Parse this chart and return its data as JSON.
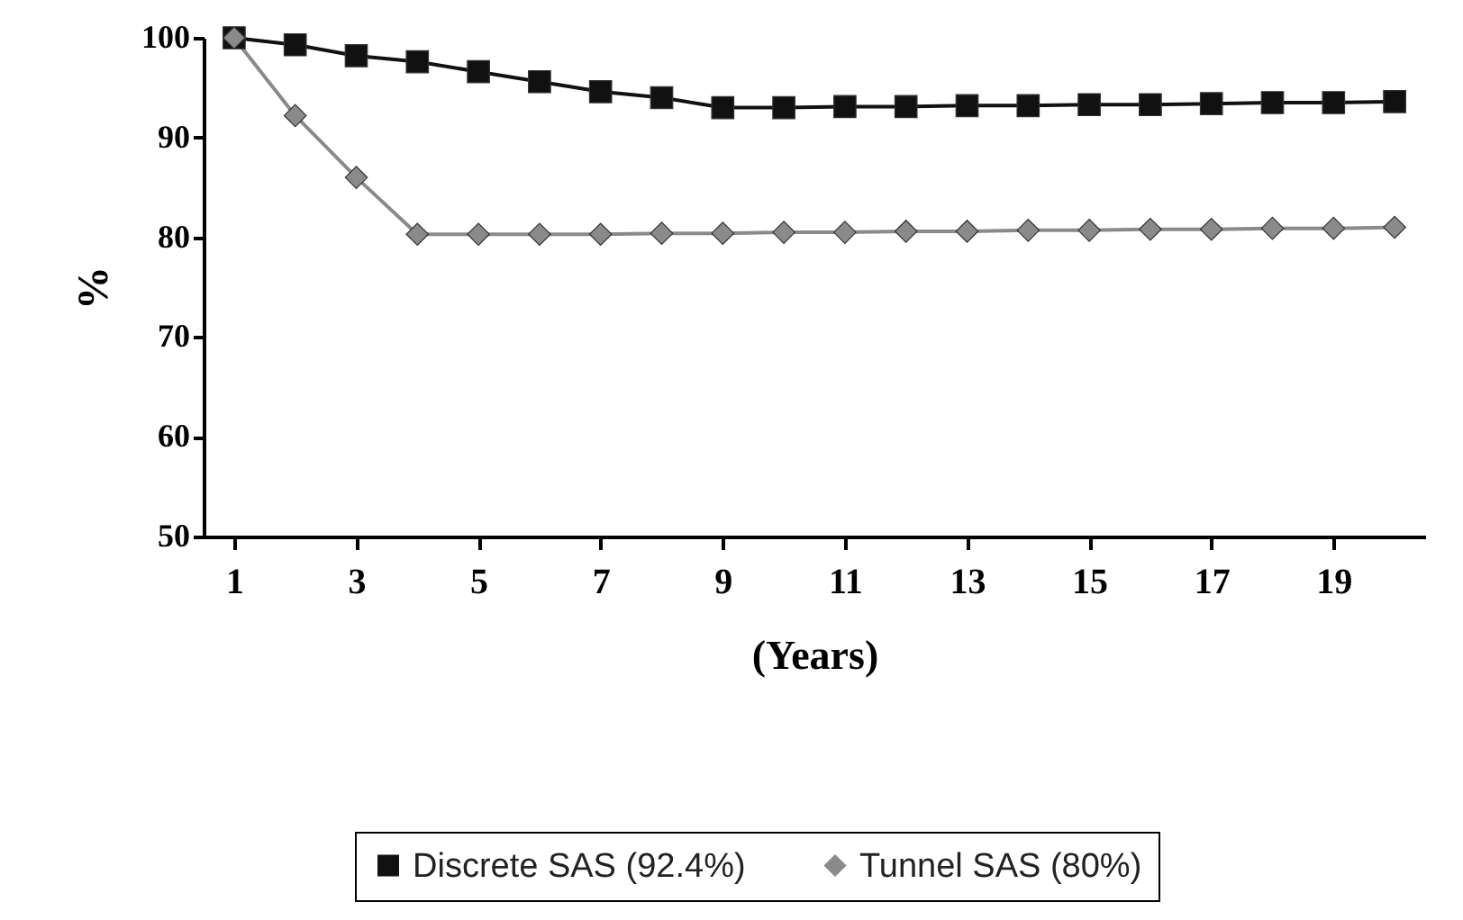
{
  "chart_data": {
    "type": "line",
    "xlabel": "(Years)",
    "ylabel": "%",
    "x": [
      1,
      2,
      3,
      4,
      5,
      6,
      7,
      8,
      9,
      10,
      11,
      12,
      13,
      14,
      15,
      16,
      17,
      18,
      19,
      20
    ],
    "xlim": [
      0.5,
      20.5
    ],
    "xticks": [
      1,
      3,
      5,
      7,
      9,
      11,
      13,
      15,
      17,
      19
    ],
    "series": [
      {
        "name": "Discrete SAS (92.4%)",
        "color": "#111111",
        "marker": "square",
        "values": [
          100,
          99.3,
          98.2,
          97.6,
          96.6,
          95.6,
          94.6,
          94.0,
          93.0,
          93.0,
          93.1,
          93.1,
          93.2,
          93.2,
          93.3,
          93.3,
          93.4,
          93.5,
          93.5,
          93.6
        ]
      },
      {
        "name": "Tunnel SAS (80%)",
        "color": "#8a8a8a",
        "marker": "diamond",
        "values": [
          100,
          92.2,
          86.0,
          80.3,
          80.3,
          80.3,
          80.3,
          80.4,
          80.4,
          80.5,
          80.5,
          80.6,
          80.6,
          80.7,
          80.7,
          80.8,
          80.8,
          80.9,
          80.9,
          81.0
        ]
      }
    ],
    "ylim": [
      50,
      100
    ],
    "yticks": [
      50,
      60,
      70,
      80,
      90,
      100
    ],
    "grid": false,
    "legend": "bottom"
  }
}
